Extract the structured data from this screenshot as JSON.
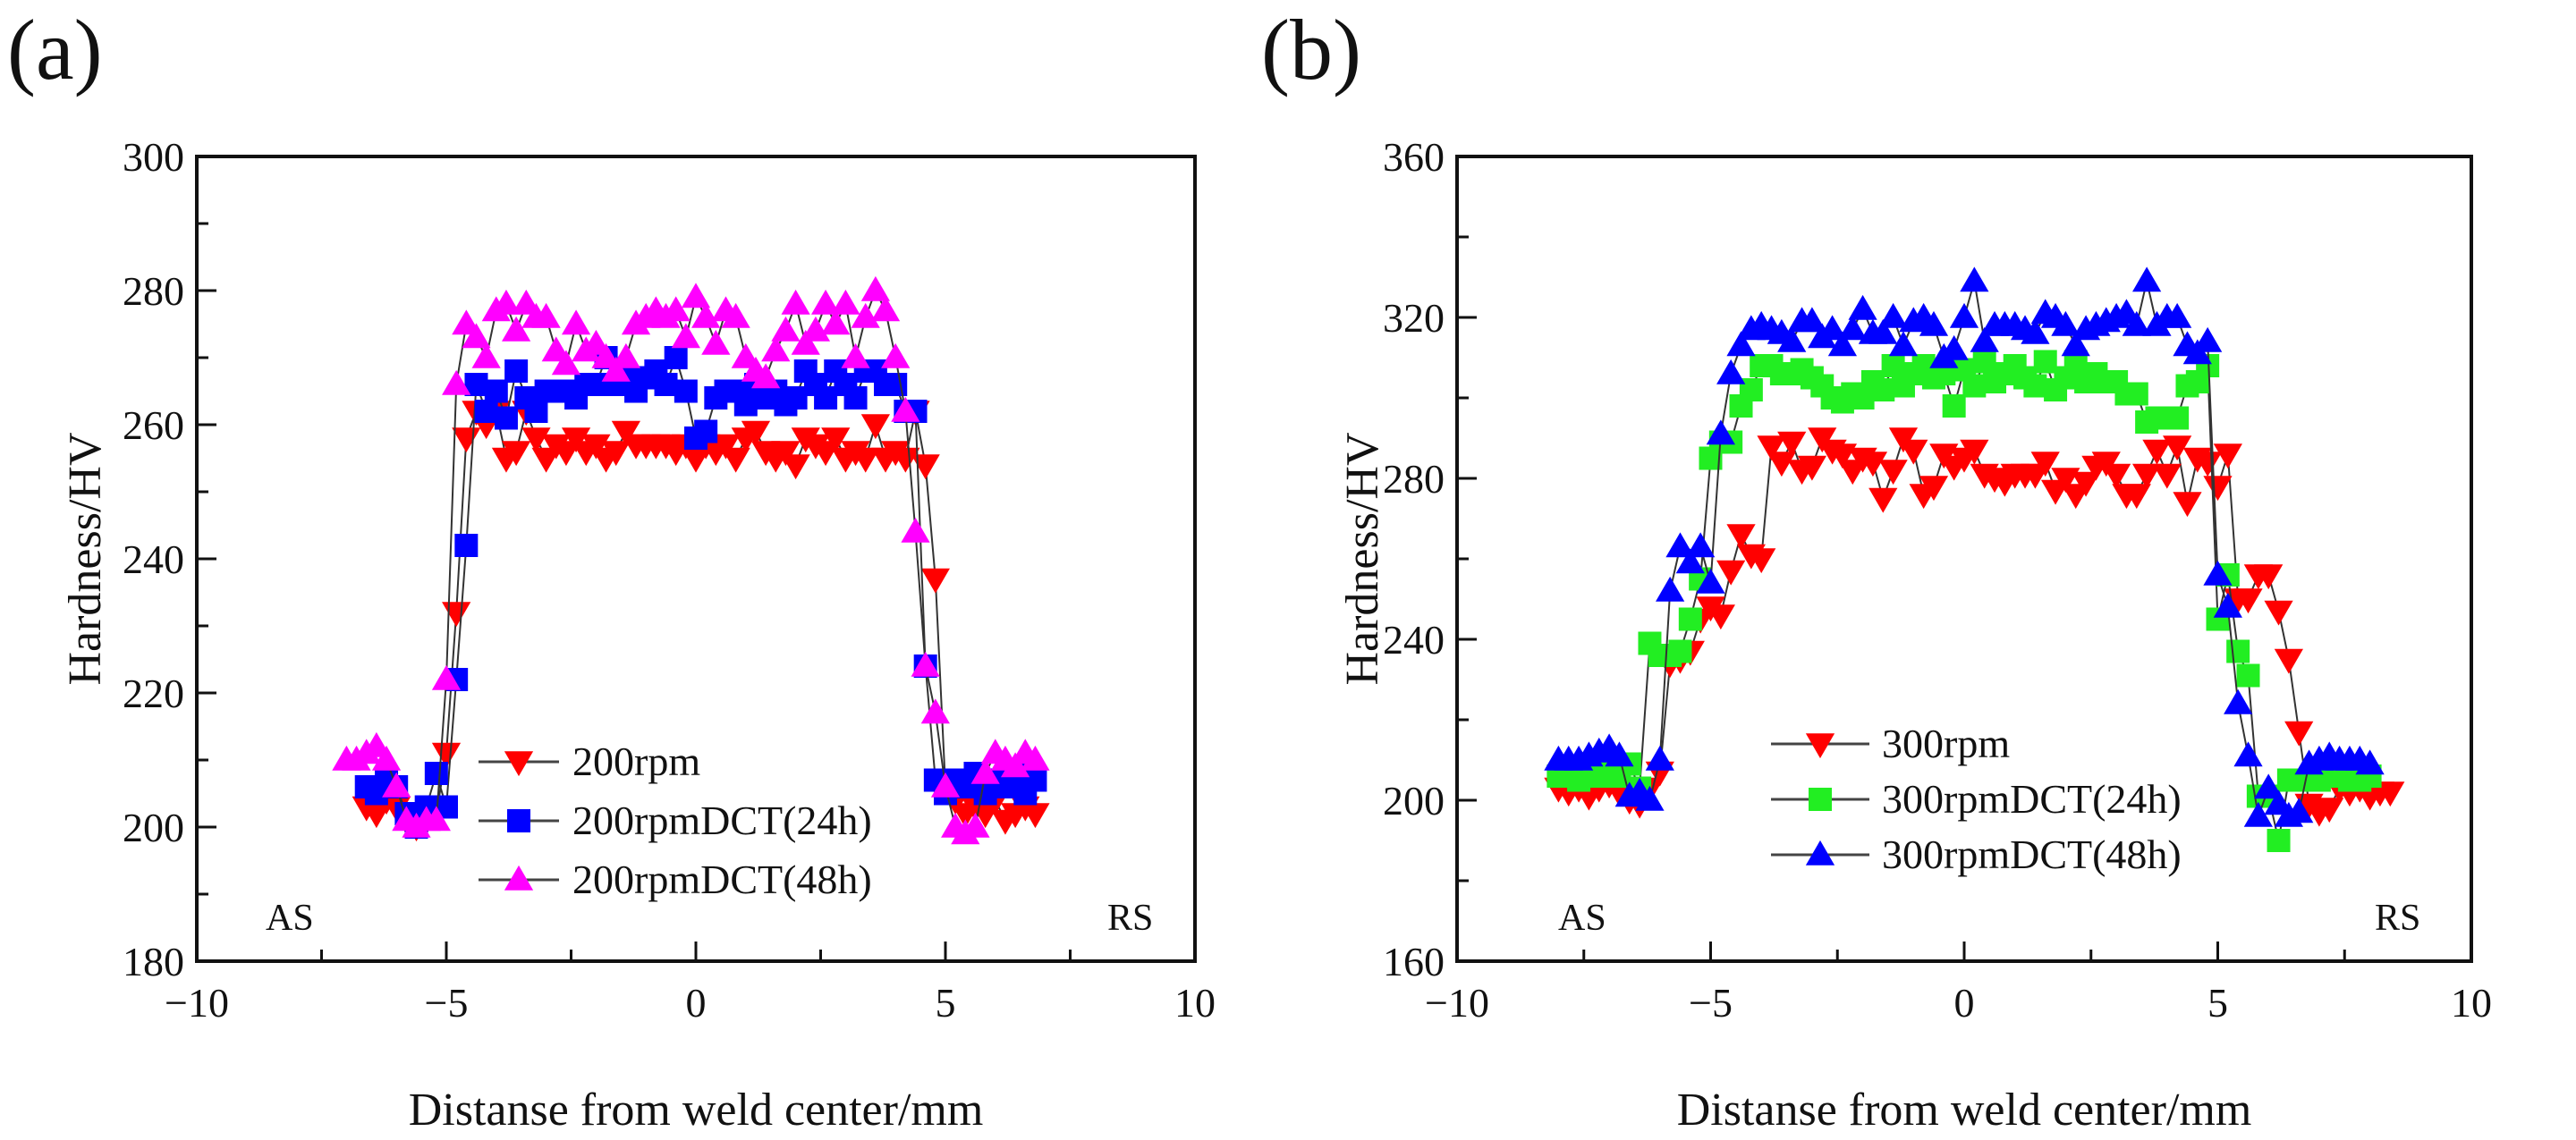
{
  "chart_data": [
    {
      "type": "line",
      "panel_label": "(a)",
      "xlabel": "Distanse from weld center/mm",
      "ylabel": "Hardness/HV",
      "xlim": [
        -10,
        10
      ],
      "ylim": [
        180,
        300
      ],
      "xticks": [
        "-10",
        "-5",
        "0",
        "5",
        "10"
      ],
      "yticks": [
        "180",
        "200",
        "220",
        "240",
        "260",
        "280",
        "300"
      ],
      "x_major_step": 5,
      "x_minor_step": 2.5,
      "y_major_step": 20,
      "y_minor_step": 10,
      "grid": false,
      "legend_position": "lower-center",
      "annotations": {
        "left": "AS",
        "right": "RS"
      },
      "series": [
        {
          "name": "200rpm",
          "marker": "triangle-down",
          "color": "#ff0000",
          "x_start": -6.6,
          "x_step": 0.2,
          "y": [
            203,
            202,
            204,
            203,
            201,
            200,
            201,
            202,
            211,
            232,
            258,
            262,
            260,
            262,
            255,
            256,
            262,
            258,
            255,
            257,
            256,
            258,
            256,
            257,
            255,
            256,
            259,
            257,
            257,
            257,
            257,
            256,
            257,
            255,
            257,
            256,
            257,
            255,
            258,
            259,
            256,
            255,
            256,
            254,
            258,
            257,
            256,
            258,
            255,
            256,
            255,
            260,
            255,
            256,
            255,
            262,
            254,
            237,
            206,
            204,
            202,
            203,
            202,
            204,
            201,
            202,
            203,
            202
          ]
        },
        {
          "name": "200rpmDCT(24h)",
          "marker": "square",
          "color": "#0000ff",
          "x_start": -6.6,
          "x_step": 0.2,
          "y": [
            206,
            205,
            207,
            206,
            202,
            200,
            203,
            208,
            203,
            222,
            242,
            266,
            262,
            265,
            261,
            268,
            264,
            262,
            265,
            265,
            265,
            264,
            266,
            266,
            270,
            266,
            267,
            265,
            267,
            268,
            266,
            270,
            265,
            258,
            259,
            264,
            265,
            265,
            263,
            266,
            264,
            265,
            263,
            264,
            268,
            266,
            264,
            268,
            266,
            264,
            268,
            268,
            266,
            266,
            262,
            262,
            224,
            207,
            205,
            207,
            206,
            208,
            205,
            207,
            206,
            208,
            205,
            207
          ]
        },
        {
          "name": "200rpmDCT(48h)",
          "marker": "triangle-up",
          "color": "#ff00ff",
          "x_start": -7.0,
          "x_step": 0.2,
          "y": [
            210,
            210,
            211,
            212,
            210,
            206,
            201,
            200,
            201,
            201,
            222,
            266,
            275,
            273,
            270,
            277,
            278,
            274,
            278,
            276,
            276,
            271,
            269,
            275,
            271,
            272,
            270,
            268,
            270,
            275,
            276,
            277,
            276,
            277,
            273,
            279,
            276,
            272,
            277,
            276,
            270,
            268,
            267,
            271,
            274,
            278,
            272,
            274,
            278,
            275,
            278,
            270,
            276,
            280,
            277,
            270,
            262,
            244,
            224,
            217,
            206,
            200,
            199,
            200,
            208,
            211,
            210,
            209,
            211,
            210
          ]
        }
      ]
    },
    {
      "type": "line",
      "panel_label": "(b)",
      "xlabel": "Distanse from weld center/mm",
      "ylabel": "Hardness/HV",
      "xlim": [
        -10,
        10
      ],
      "ylim": [
        160,
        360
      ],
      "xticks": [
        "-10",
        "-5",
        "0",
        "5",
        "10"
      ],
      "yticks": [
        "160",
        "200",
        "240",
        "280",
        "320",
        "360"
      ],
      "x_major_step": 5,
      "x_minor_step": 2.5,
      "y_major_step": 40,
      "y_minor_step": 20,
      "grid": false,
      "legend_position": "lower-center",
      "annotations": {
        "left": "AS",
        "right": "RS"
      },
      "series": [
        {
          "name": "300rpm",
          "marker": "triangle-down",
          "color": "#ff0000",
          "x_start": -8.0,
          "x_step": 0.2,
          "y": [
            203,
            202,
            203,
            201,
            203,
            204,
            202,
            200,
            199,
            203,
            207,
            234,
            235,
            237,
            245,
            248,
            246,
            257,
            266,
            261,
            260,
            288,
            284,
            289,
            282,
            283,
            290,
            287,
            286,
            282,
            285,
            284,
            275,
            282,
            290,
            287,
            276,
            278,
            286,
            283,
            285,
            287,
            281,
            280,
            279,
            281,
            281,
            281,
            284,
            277,
            280,
            276,
            279,
            283,
            284,
            281,
            276,
            276,
            281,
            287,
            281,
            288,
            274,
            285,
            284,
            278,
            286,
            250,
            250,
            256,
            256,
            247,
            235,
            217,
            199,
            197,
            198,
            203,
            202,
            203,
            201,
            202,
            202
          ]
        },
        {
          "name": "300rpmDCT(24h)",
          "marker": "square",
          "color": "#22ee22",
          "x_start": -8.0,
          "x_step": 0.2,
          "y": [
            206,
            206,
            205,
            207,
            206,
            207,
            206,
            209,
            203,
            239,
            236,
            236,
            237,
            245,
            255,
            285,
            289,
            289,
            298,
            302,
            308,
            308,
            306,
            306,
            307,
            305,
            303,
            300,
            299,
            301,
            300,
            304,
            302,
            308,
            303,
            306,
            308,
            305,
            306,
            298,
            307,
            303,
            309,
            304,
            306,
            308,
            305,
            303,
            309,
            302,
            305,
            309,
            304,
            306,
            304,
            304,
            301,
            301,
            294,
            295,
            295,
            295,
            303,
            304,
            308,
            245,
            256,
            237,
            231,
            201,
            201,
            190,
            205,
            205,
            205,
            205,
            206,
            206,
            205,
            205,
            206
          ]
        },
        {
          "name": "300rpmDCT(48h)",
          "marker": "triangle-up",
          "color": "#0000ff",
          "x_start": -8.0,
          "x_step": 0.2,
          "y": [
            210,
            210,
            210,
            211,
            212,
            213,
            211,
            201,
            202,
            200,
            210,
            252,
            263,
            259,
            263,
            254,
            291,
            306,
            313,
            317,
            318,
            317,
            316,
            314,
            319,
            319,
            315,
            317,
            313,
            317,
            322,
            316,
            316,
            320,
            313,
            319,
            320,
            318,
            310,
            312,
            320,
            329,
            314,
            318,
            318,
            318,
            317,
            316,
            321,
            320,
            318,
            313,
            317,
            318,
            319,
            320,
            321,
            318,
            329,
            318,
            320,
            320,
            313,
            311,
            314,
            256,
            248,
            224,
            211,
            196,
            203,
            199,
            196,
            197,
            209,
            210,
            211,
            210,
            210,
            210,
            209
          ]
        }
      ]
    }
  ]
}
